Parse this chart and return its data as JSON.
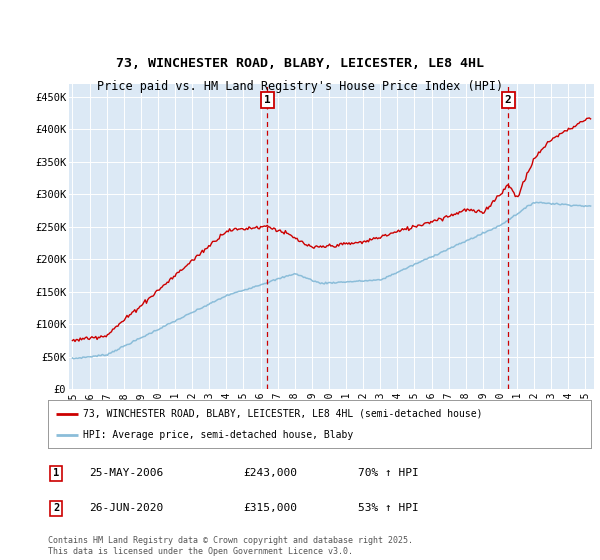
{
  "title": "73, WINCHESTER ROAD, BLABY, LEICESTER, LE8 4HL",
  "subtitle": "Price paid vs. HM Land Registry's House Price Index (HPI)",
  "ylabel_ticks": [
    "£0",
    "£50K",
    "£100K",
    "£150K",
    "£200K",
    "£250K",
    "£300K",
    "£350K",
    "£400K",
    "£450K"
  ],
  "ytick_values": [
    0,
    50000,
    100000,
    150000,
    200000,
    250000,
    300000,
    350000,
    400000,
    450000
  ],
  "ylim": [
    0,
    470000
  ],
  "xlim_start": 1994.8,
  "xlim_end": 2025.5,
  "plot_bg": "#dce9f5",
  "hpi_color": "#8bbdd9",
  "price_color": "#cc0000",
  "marker1_x": 2006.4,
  "marker2_x": 2020.48,
  "legend_label_red": "73, WINCHESTER ROAD, BLABY, LEICESTER, LE8 4HL (semi-detached house)",
  "legend_label_blue": "HPI: Average price, semi-detached house, Blaby",
  "sale1_date": "25-MAY-2006",
  "sale1_price": "£243,000",
  "sale1_hpi": "70% ↑ HPI",
  "sale2_date": "26-JUN-2020",
  "sale2_price": "£315,000",
  "sale2_hpi": "53% ↑ HPI",
  "footer": "Contains HM Land Registry data © Crown copyright and database right 2025.\nThis data is licensed under the Open Government Licence v3.0.",
  "xtick_years": [
    1995,
    1996,
    1997,
    1998,
    1999,
    2000,
    2001,
    2002,
    2003,
    2004,
    2005,
    2006,
    2007,
    2008,
    2009,
    2010,
    2011,
    2012,
    2013,
    2014,
    2015,
    2016,
    2017,
    2018,
    2019,
    2020,
    2021,
    2022,
    2023,
    2024,
    2025
  ]
}
